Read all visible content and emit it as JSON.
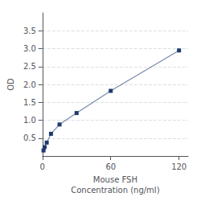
{
  "chart_data": {
    "type": "line",
    "xlabel": "Mouse FSH\nConcentration (ng/ml)",
    "ylabel": "OD",
    "x": [
      0.94,
      1.875,
      3.75,
      7.5,
      15,
      30,
      60,
      120
    ],
    "values": [
      0.154,
      0.248,
      0.374,
      0.62,
      0.88,
      1.2,
      1.82,
      2.95
    ],
    "xlim": [
      0,
      128
    ],
    "xticks": [
      0,
      60,
      120
    ],
    "ylim": [
      0,
      4.0
    ],
    "yticks": [
      0.5,
      {
        "value": 1.0,
        "label": "1.0"
      },
      1.5,
      {
        "value": 2.0,
        "label": "2.0"
      },
      2.5,
      {
        "value": 3.0,
        "label": "3.0"
      },
      3.5
    ],
    "color": "#1e3a6e",
    "marker": "square",
    "grid": true
  }
}
